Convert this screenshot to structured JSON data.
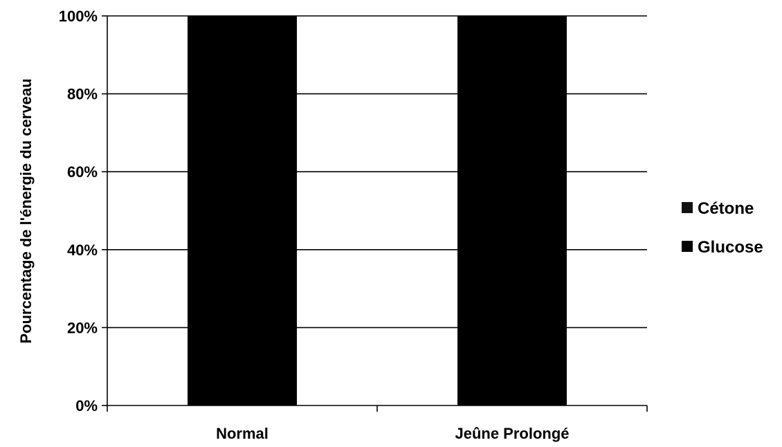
{
  "chart_data": {
    "type": "bar",
    "stacked": true,
    "percent": true,
    "categories": [
      "Normal",
      "Jeûne Prolongé"
    ],
    "series": [
      {
        "name": "Glucose",
        "values": [
          100,
          100
        ],
        "color": "#000000"
      },
      {
        "name": "Cétone",
        "values": [
          0,
          0
        ],
        "color": "#111111"
      }
    ],
    "ylabel": "Pourcentage de l'énergie du cerveau",
    "xlabel": "",
    "ylim": [
      0,
      100
    ],
    "yticks": [
      "0%",
      "20%",
      "40%",
      "60%",
      "80%",
      "100%"
    ],
    "grid": true,
    "legend_position": "right"
  }
}
